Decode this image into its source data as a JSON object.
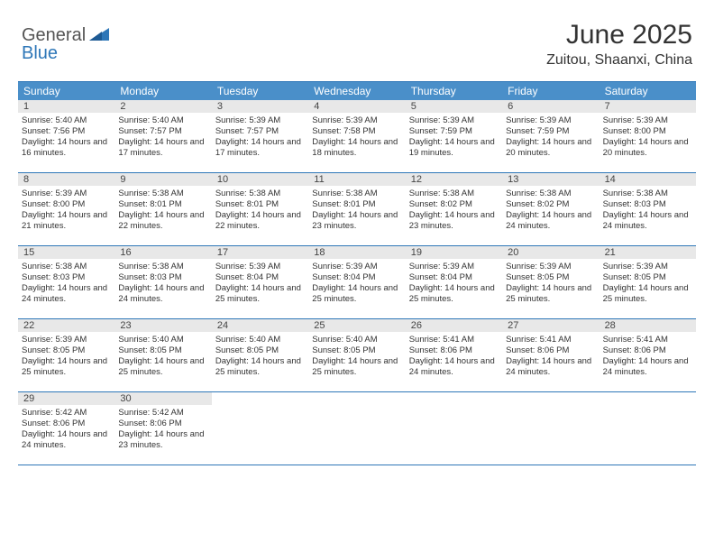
{
  "brand": {
    "part1": "General",
    "part2": "Blue"
  },
  "title": "June 2025",
  "location": "Zuitou, Shaanxi, China",
  "dayNames": [
    "Sunday",
    "Monday",
    "Tuesday",
    "Wednesday",
    "Thursday",
    "Friday",
    "Saturday"
  ],
  "colors": {
    "headerBg": "#4a8fc9",
    "border": "#2e77b8",
    "dayNumBg": "#e8e8e8",
    "text": "#333333",
    "brandBlue": "#2e77b8"
  },
  "weeks": [
    [
      {
        "n": "1",
        "sr": "5:40 AM",
        "ss": "7:56 PM",
        "dh": "14",
        "dm": "16"
      },
      {
        "n": "2",
        "sr": "5:40 AM",
        "ss": "7:57 PM",
        "dh": "14",
        "dm": "17"
      },
      {
        "n": "3",
        "sr": "5:39 AM",
        "ss": "7:57 PM",
        "dh": "14",
        "dm": "17"
      },
      {
        "n": "4",
        "sr": "5:39 AM",
        "ss": "7:58 PM",
        "dh": "14",
        "dm": "18"
      },
      {
        "n": "5",
        "sr": "5:39 AM",
        "ss": "7:59 PM",
        "dh": "14",
        "dm": "19"
      },
      {
        "n": "6",
        "sr": "5:39 AM",
        "ss": "7:59 PM",
        "dh": "14",
        "dm": "20"
      },
      {
        "n": "7",
        "sr": "5:39 AM",
        "ss": "8:00 PM",
        "dh": "14",
        "dm": "20"
      }
    ],
    [
      {
        "n": "8",
        "sr": "5:39 AM",
        "ss": "8:00 PM",
        "dh": "14",
        "dm": "21"
      },
      {
        "n": "9",
        "sr": "5:38 AM",
        "ss": "8:01 PM",
        "dh": "14",
        "dm": "22"
      },
      {
        "n": "10",
        "sr": "5:38 AM",
        "ss": "8:01 PM",
        "dh": "14",
        "dm": "22"
      },
      {
        "n": "11",
        "sr": "5:38 AM",
        "ss": "8:01 PM",
        "dh": "14",
        "dm": "23"
      },
      {
        "n": "12",
        "sr": "5:38 AM",
        "ss": "8:02 PM",
        "dh": "14",
        "dm": "23"
      },
      {
        "n": "13",
        "sr": "5:38 AM",
        "ss": "8:02 PM",
        "dh": "14",
        "dm": "24"
      },
      {
        "n": "14",
        "sr": "5:38 AM",
        "ss": "8:03 PM",
        "dh": "14",
        "dm": "24"
      }
    ],
    [
      {
        "n": "15",
        "sr": "5:38 AM",
        "ss": "8:03 PM",
        "dh": "14",
        "dm": "24"
      },
      {
        "n": "16",
        "sr": "5:38 AM",
        "ss": "8:03 PM",
        "dh": "14",
        "dm": "24"
      },
      {
        "n": "17",
        "sr": "5:39 AM",
        "ss": "8:04 PM",
        "dh": "14",
        "dm": "25"
      },
      {
        "n": "18",
        "sr": "5:39 AM",
        "ss": "8:04 PM",
        "dh": "14",
        "dm": "25"
      },
      {
        "n": "19",
        "sr": "5:39 AM",
        "ss": "8:04 PM",
        "dh": "14",
        "dm": "25"
      },
      {
        "n": "20",
        "sr": "5:39 AM",
        "ss": "8:05 PM",
        "dh": "14",
        "dm": "25"
      },
      {
        "n": "21",
        "sr": "5:39 AM",
        "ss": "8:05 PM",
        "dh": "14",
        "dm": "25"
      }
    ],
    [
      {
        "n": "22",
        "sr": "5:39 AM",
        "ss": "8:05 PM",
        "dh": "14",
        "dm": "25"
      },
      {
        "n": "23",
        "sr": "5:40 AM",
        "ss": "8:05 PM",
        "dh": "14",
        "dm": "25"
      },
      {
        "n": "24",
        "sr": "5:40 AM",
        "ss": "8:05 PM",
        "dh": "14",
        "dm": "25"
      },
      {
        "n": "25",
        "sr": "5:40 AM",
        "ss": "8:05 PM",
        "dh": "14",
        "dm": "25"
      },
      {
        "n": "26",
        "sr": "5:41 AM",
        "ss": "8:06 PM",
        "dh": "14",
        "dm": "24"
      },
      {
        "n": "27",
        "sr": "5:41 AM",
        "ss": "8:06 PM",
        "dh": "14",
        "dm": "24"
      },
      {
        "n": "28",
        "sr": "5:41 AM",
        "ss": "8:06 PM",
        "dh": "14",
        "dm": "24"
      }
    ],
    [
      {
        "n": "29",
        "sr": "5:42 AM",
        "ss": "8:06 PM",
        "dh": "14",
        "dm": "24"
      },
      {
        "n": "30",
        "sr": "5:42 AM",
        "ss": "8:06 PM",
        "dh": "14",
        "dm": "23"
      },
      null,
      null,
      null,
      null,
      null
    ]
  ]
}
